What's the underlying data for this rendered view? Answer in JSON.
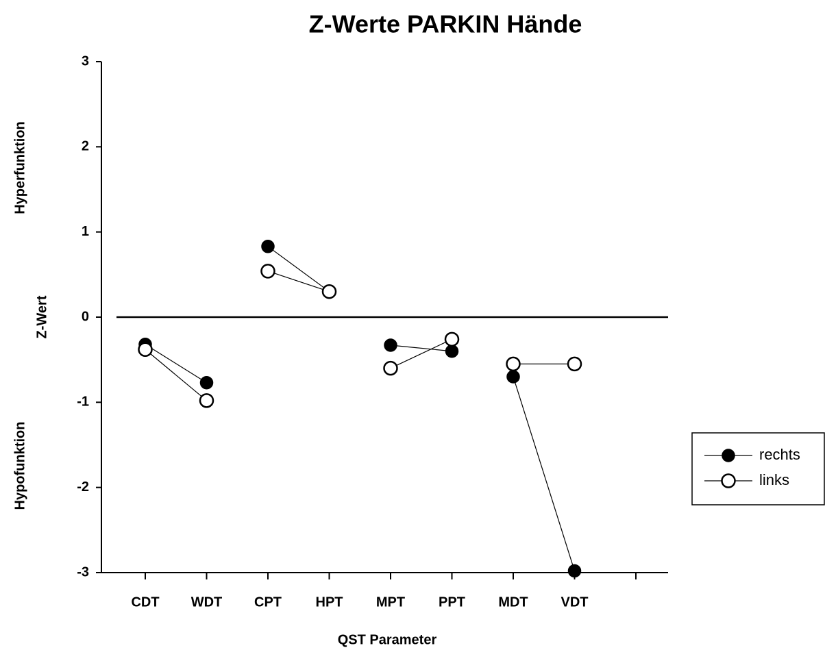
{
  "chart_data": {
    "type": "line",
    "title": "Z-Werte PARKIN Hände",
    "x_label": "QST Parameter",
    "y_label": "Z-Wert",
    "annotations": [
      "Hyperfunktion",
      "Hypofunktion"
    ],
    "categories": [
      "CDT",
      "WDT",
      "CPT",
      "HPT",
      "MPT",
      "PPT",
      "MDT",
      "VDT",
      null
    ],
    "series": [
      {
        "name": "rechts",
        "color": "#000000",
        "filled": true,
        "values": [
          -0.32,
          -0.77,
          0.83,
          0.3,
          -0.33,
          -0.4,
          -0.7,
          -2.98,
          null
        ]
      },
      {
        "name": "links",
        "color": "#000000",
        "filled": false,
        "values": [
          -0.38,
          -0.98,
          0.54,
          0.3,
          -0.6,
          -0.26,
          -0.55,
          -0.55,
          null
        ]
      }
    ],
    "ylim": [
      -3,
      3
    ],
    "yticks": [
      -3,
      -2,
      -1,
      0,
      1,
      2,
      3
    ],
    "reference_line": 0,
    "legend": "right"
  }
}
